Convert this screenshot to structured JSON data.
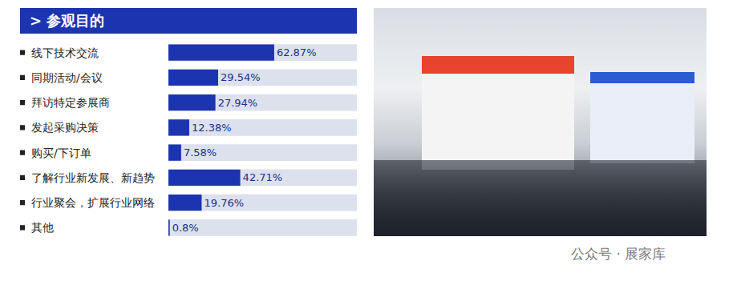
{
  "header": {
    "title": "> 参观目的"
  },
  "chart_data": {
    "type": "bar",
    "orientation": "horizontal",
    "categories": [
      "线下技术交流",
      "同期活动/会议",
      "拜访特定参展商",
      "发起采购决策",
      "购买/下订单",
      "了解行业新发展、新趋势",
      "行业聚会，扩展行业网络",
      "其他"
    ],
    "values": [
      62.87,
      29.54,
      27.94,
      12.38,
      7.58,
      42.71,
      19.76,
      0.8
    ],
    "value_labels": [
      "62.87%",
      "29.54%",
      "27.94%",
      "12.38%",
      "7.58%",
      "42.71%",
      "19.76%",
      "0.8%"
    ],
    "data_labels": true,
    "color": "#1c34b0",
    "xlim": [
      0,
      112
    ],
    "grid": false,
    "tick_labels": false
  },
  "watermark": "公众号 · 展家库"
}
